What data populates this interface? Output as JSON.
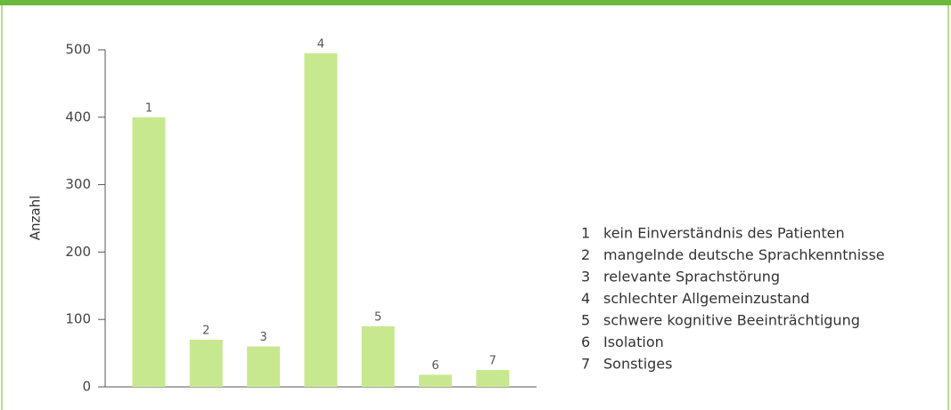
{
  "chart_data": {
    "type": "bar",
    "y_label": "Anzahl",
    "categories": [
      "1",
      "2",
      "3",
      "4",
      "5",
      "6",
      "7"
    ],
    "values": [
      400,
      70,
      60,
      495,
      90,
      18,
      25
    ],
    "legend_labels": [
      "kein Einverständnis des Patienten",
      "mangelnde deutsche Sprachkenntnisse",
      "relevante Sprachstörung",
      "schlechter Allgemeinzustand",
      "schwere kognitive Beeinträchtigung",
      "Isolation",
      "Sonstiges"
    ],
    "color": "#c8e890",
    "ylim": [
      0,
      500
    ],
    "yticks": [
      0,
      100,
      200,
      300,
      400,
      500
    ],
    "grid": false
  }
}
